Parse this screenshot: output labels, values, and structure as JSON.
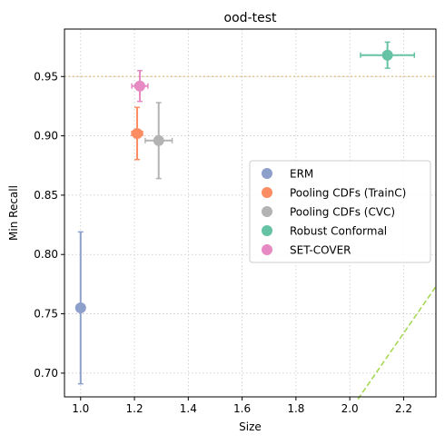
{
  "chart_data": {
    "type": "scatter",
    "title": "ood-test",
    "xlabel": "Size",
    "ylabel": "Min Recall",
    "xlim": [
      0.94,
      2.32
    ],
    "ylim": [
      0.68,
      0.99
    ],
    "xticks": [
      1.0,
      1.2,
      1.4,
      1.6,
      1.8,
      2.0,
      2.2
    ],
    "xtick_labels": [
      "1.0",
      "1.2",
      "1.4",
      "1.6",
      "1.8",
      "2.0",
      "2.2"
    ],
    "yticks": [
      0.7,
      0.75,
      0.8,
      0.85,
      0.9,
      0.95
    ],
    "ytick_labels": [
      "0.70",
      "0.75",
      "0.80",
      "0.85",
      "0.90",
      "0.95"
    ],
    "grid": true,
    "legend_position": "center-right",
    "series": [
      {
        "name": "ERM",
        "color": "#8da0cb",
        "x": 1.0,
        "y": 0.755,
        "xerr": 0.0,
        "yerr": 0.064
      },
      {
        "name": "Pooling CDFs (TrainC)",
        "color": "#fc8d62",
        "x": 1.21,
        "y": 0.902,
        "xerr": 0.02,
        "yerr": 0.022
      },
      {
        "name": "Pooling CDFs (CVC)",
        "color": "#b3b3b3",
        "x": 1.29,
        "y": 0.896,
        "xerr": 0.05,
        "yerr": 0.032
      },
      {
        "name": "Robust Conformal",
        "color": "#66c2a5",
        "x": 2.14,
        "y": 0.968,
        "xerr": 0.1,
        "yerr": 0.011
      },
      {
        "name": "SET-COVER",
        "color": "#e78ac3",
        "x": 1.22,
        "y": 0.942,
        "xerr": 0.03,
        "yerr": 0.013
      }
    ],
    "reference_lines": [
      {
        "kind": "horizontal",
        "y": 0.95,
        "color": "#e5c494",
        "style": "dotted"
      },
      {
        "kind": "diagonal",
        "x": [
          2.03,
          2.32
        ],
        "y": [
          0.678,
          0.773
        ],
        "color": "#a6d854",
        "style": "dashed"
      }
    ]
  }
}
